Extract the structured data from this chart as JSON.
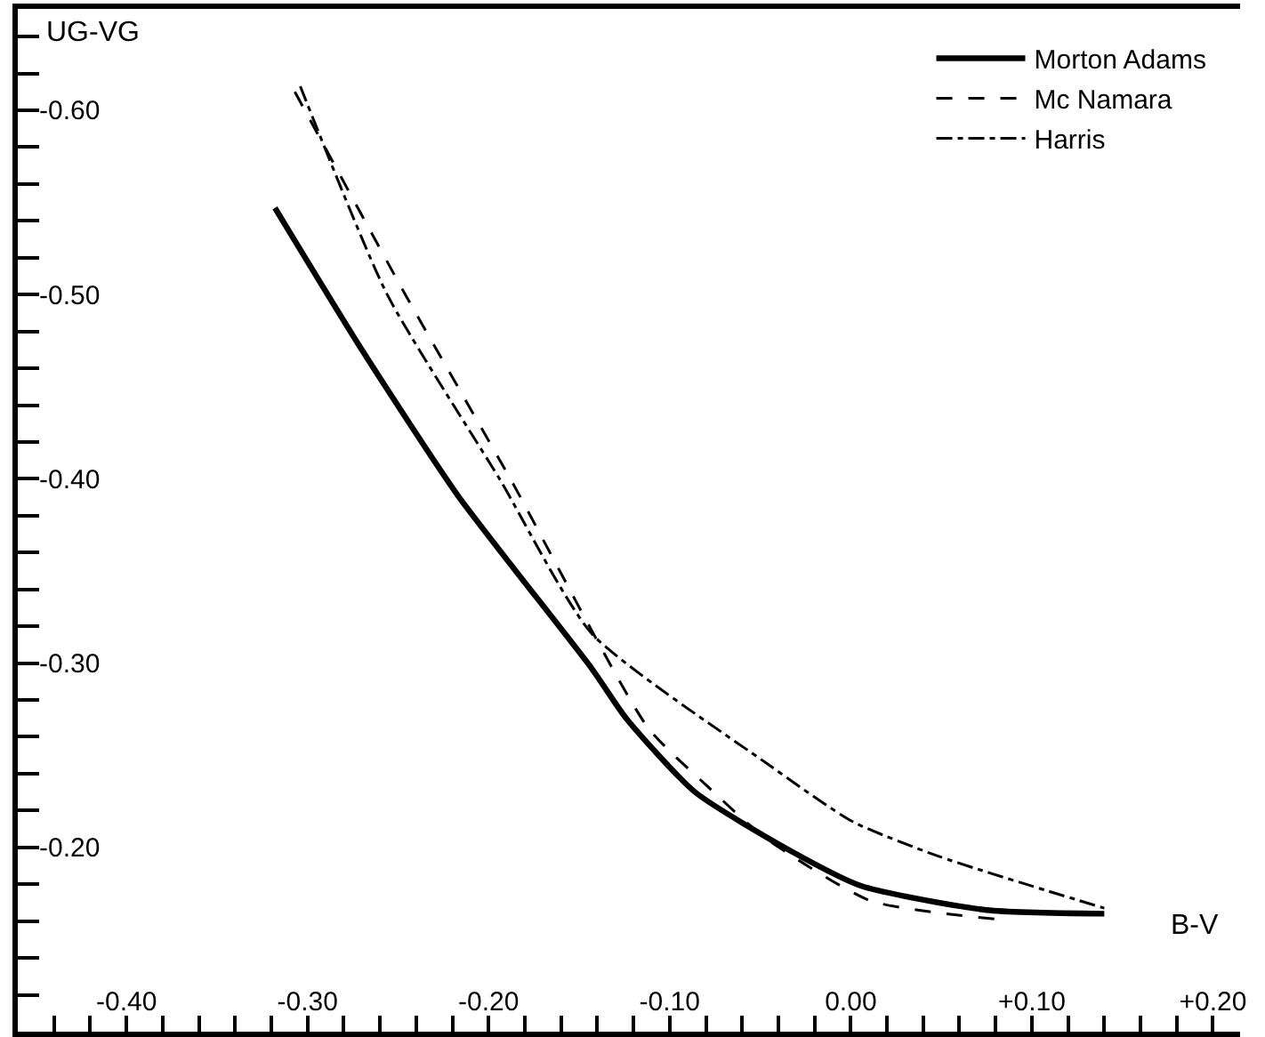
{
  "chart_data": {
    "type": "line",
    "xlabel": "B-V",
    "ylabel": "UG-VG",
    "series": [
      {
        "name": "Morton Adams",
        "color": "#000000",
        "line_style": "solid",
        "x": [
          -0.318,
          -0.27,
          -0.217,
          -0.143,
          -0.124,
          -0.086,
          -0.033,
          0.006,
          0.075,
          0.14
        ],
        "values": [
          -0.547,
          -0.47,
          -0.391,
          -0.297,
          -0.27,
          -0.23,
          -0.198,
          -0.179,
          -0.166,
          -0.164
        ]
      },
      {
        "name": "Mc Namara",
        "color": "#000000",
        "line_style": "dashed",
        "x": [
          -0.307,
          -0.246,
          -0.188,
          -0.112,
          -0.079,
          -0.047,
          0.011,
          0.081
        ],
        "values": [
          -0.61,
          -0.5,
          -0.4,
          -0.265,
          -0.233,
          -0.205,
          -0.171,
          -0.161
        ]
      },
      {
        "name": "Harris",
        "color": "#000000",
        "line_style": "dashdot",
        "x": [
          -0.304,
          -0.256,
          -0.194,
          -0.143,
          -0.047,
          0.001,
          0.049,
          0.14
        ],
        "values": [
          -0.613,
          -0.5,
          -0.4,
          -0.316,
          -0.246,
          -0.214,
          -0.195,
          -0.167
        ]
      }
    ],
    "xlim": [
      -0.46,
      0.215
    ],
    "ylim": [
      -0.1,
      -0.655
    ],
    "xticks": [
      {
        "value": -0.44,
        "label": null
      },
      {
        "value": -0.42,
        "label": null
      },
      {
        "value": -0.4,
        "label": "-0.40"
      },
      {
        "value": -0.38,
        "label": null
      },
      {
        "value": -0.36,
        "label": null
      },
      {
        "value": -0.34,
        "label": null
      },
      {
        "value": -0.32,
        "label": null
      },
      {
        "value": -0.3,
        "label": "-0.30"
      },
      {
        "value": -0.28,
        "label": null
      },
      {
        "value": -0.26,
        "label": null
      },
      {
        "value": -0.24,
        "label": null
      },
      {
        "value": -0.22,
        "label": null
      },
      {
        "value": -0.2,
        "label": "-0.20"
      },
      {
        "value": -0.18,
        "label": null
      },
      {
        "value": -0.16,
        "label": null
      },
      {
        "value": -0.14,
        "label": null
      },
      {
        "value": -0.12,
        "label": null
      },
      {
        "value": -0.1,
        "label": "-0.10"
      },
      {
        "value": -0.08,
        "label": null
      },
      {
        "value": -0.06,
        "label": null
      },
      {
        "value": -0.04,
        "label": null
      },
      {
        "value": -0.02,
        "label": null
      },
      {
        "value": 0,
        "label": "0.00"
      },
      {
        "value": 0.02,
        "label": null
      },
      {
        "value": 0.04,
        "label": null
      },
      {
        "value": 0.06,
        "label": null
      },
      {
        "value": 0.08,
        "label": null
      },
      {
        "value": 0.1,
        "label": "+0.10"
      },
      {
        "value": 0.12,
        "label": null
      },
      {
        "value": 0.14,
        "label": null
      },
      {
        "value": 0.16,
        "label": null
      },
      {
        "value": 0.18,
        "label": null
      },
      {
        "value": 0.2,
        "label": "+0.20"
      }
    ],
    "yticks": [
      {
        "value": -0.64,
        "label": null
      },
      {
        "value": -0.62,
        "label": null
      },
      {
        "value": -0.6,
        "label": "-0.60"
      },
      {
        "value": -0.58,
        "label": null
      },
      {
        "value": -0.56,
        "label": null
      },
      {
        "value": -0.54,
        "label": null
      },
      {
        "value": -0.52,
        "label": null
      },
      {
        "value": -0.5,
        "label": "-0.50"
      },
      {
        "value": -0.48,
        "label": null
      },
      {
        "value": -0.46,
        "label": null
      },
      {
        "value": -0.44,
        "label": null
      },
      {
        "value": -0.42,
        "label": null
      },
      {
        "value": -0.4,
        "label": "-0.40"
      },
      {
        "value": -0.38,
        "label": null
      },
      {
        "value": -0.36,
        "label": null
      },
      {
        "value": -0.34,
        "label": null
      },
      {
        "value": -0.32,
        "label": null
      },
      {
        "value": -0.3,
        "label": "-0.30"
      },
      {
        "value": -0.28,
        "label": null
      },
      {
        "value": -0.26,
        "label": null
      },
      {
        "value": -0.24,
        "label": null
      },
      {
        "value": -0.22,
        "label": null
      },
      {
        "value": -0.2,
        "label": "-0.20"
      },
      {
        "value": -0.18,
        "label": null
      },
      {
        "value": -0.16,
        "label": null
      },
      {
        "value": -0.14,
        "label": null
      },
      {
        "value": -0.12,
        "label": null
      }
    ],
    "legend": "top right",
    "marker": "none"
  }
}
